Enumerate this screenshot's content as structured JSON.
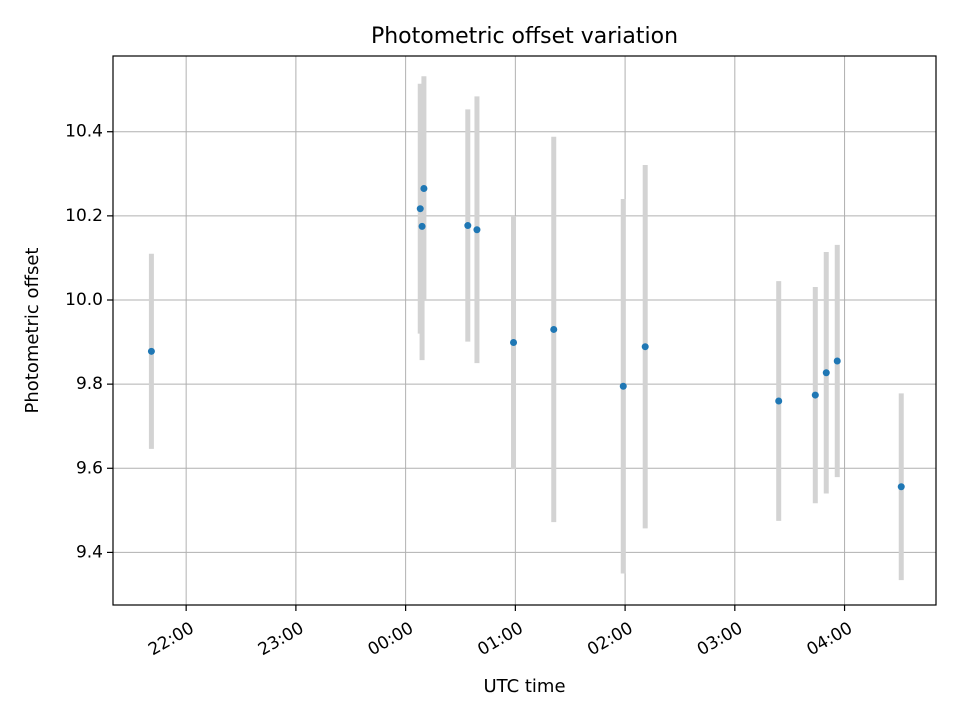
{
  "chart_data": {
    "type": "scatter",
    "title": "Photometric offset variation",
    "xlabel": "UTC time",
    "ylabel": "Photometric offset",
    "x_type": "time",
    "xlim": [
      "21:20",
      "04:50"
    ],
    "ylim": [
      9.275,
      10.58
    ],
    "x_ticks": [
      "22:00",
      "23:00",
      "00:00",
      "01:00",
      "02:00",
      "03:00",
      "04:00"
    ],
    "y_ticks": [
      9.4,
      9.6,
      9.8,
      10.0,
      10.2,
      10.4
    ],
    "y_tick_labels": [
      "9.4",
      "9.6",
      "9.8",
      "10.0",
      "10.2",
      "10.4"
    ],
    "grid": true,
    "series": [
      {
        "marker_color": "#1f77b4",
        "errorbar_color": "#d3d3d3",
        "points": [
          {
            "x": "21:41",
            "y": 9.878,
            "err": 0.232
          },
          {
            "x": "00:08",
            "y": 10.217,
            "err": 0.297
          },
          {
            "x": "00:09",
            "y": 10.175,
            "err": 0.318
          },
          {
            "x": "00:10",
            "y": 10.265,
            "err": 0.267
          },
          {
            "x": "00:34",
            "y": 10.177,
            "err": 0.276
          },
          {
            "x": "00:39",
            "y": 10.167,
            "err": 0.317
          },
          {
            "x": "00:59",
            "y": 9.899,
            "err": 0.301
          },
          {
            "x": "01:21",
            "y": 9.93,
            "err": 0.458
          },
          {
            "x": "01:59",
            "y": 9.795,
            "err": 0.445
          },
          {
            "x": "02:11",
            "y": 9.889,
            "err": 0.432
          },
          {
            "x": "03:24",
            "y": 9.76,
            "err": 0.285
          },
          {
            "x": "03:44",
            "y": 9.774,
            "err": 0.257
          },
          {
            "x": "03:50",
            "y": 9.827,
            "err": 0.287
          },
          {
            "x": "03:56",
            "y": 9.855,
            "err": 0.276
          },
          {
            "x": "04:31",
            "y": 9.556,
            "err": 0.222
          }
        ]
      }
    ]
  }
}
